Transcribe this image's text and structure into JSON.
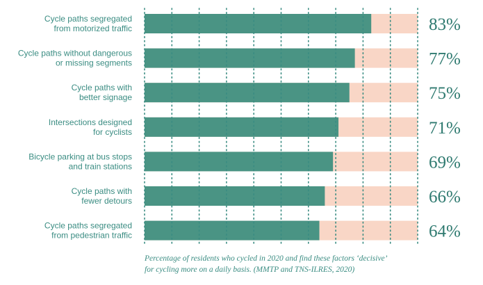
{
  "chart_data": {
    "type": "bar",
    "orientation": "horizontal",
    "categories": [
      [
        "Cycle paths segregated",
        "from motorized traffic"
      ],
      [
        "Cycle paths without dangerous",
        "or missing segments"
      ],
      [
        "Cycle paths with",
        "better signage"
      ],
      [
        "Intersections designed",
        "for cyclists"
      ],
      [
        "Bicycle parking at bus stops",
        "and train stations"
      ],
      [
        "Cycle paths with",
        "fewer detours"
      ],
      [
        "Cycle paths segregated",
        "from pedestrian traffic"
      ]
    ],
    "values": [
      83,
      77,
      75,
      71,
      69,
      66,
      64
    ],
    "value_labels": [
      "83%",
      "77%",
      "75%",
      "71%",
      "69%",
      "66%",
      "64%"
    ],
    "xlim": [
      0,
      100
    ],
    "grid": "dotted vertical",
    "caption": [
      "Percentage of residents who cycled in 2020 and find these factors ‘decisive’",
      "for cycling more on a daily basis. (MMTP and TNS-ILRES, 2020)"
    ]
  },
  "colors": {
    "bar": "#4a9484",
    "remainder": "#f9d6c6",
    "grid": "#3a8c82",
    "label": "#3a8c82",
    "value_label": "#2f7a70"
  }
}
